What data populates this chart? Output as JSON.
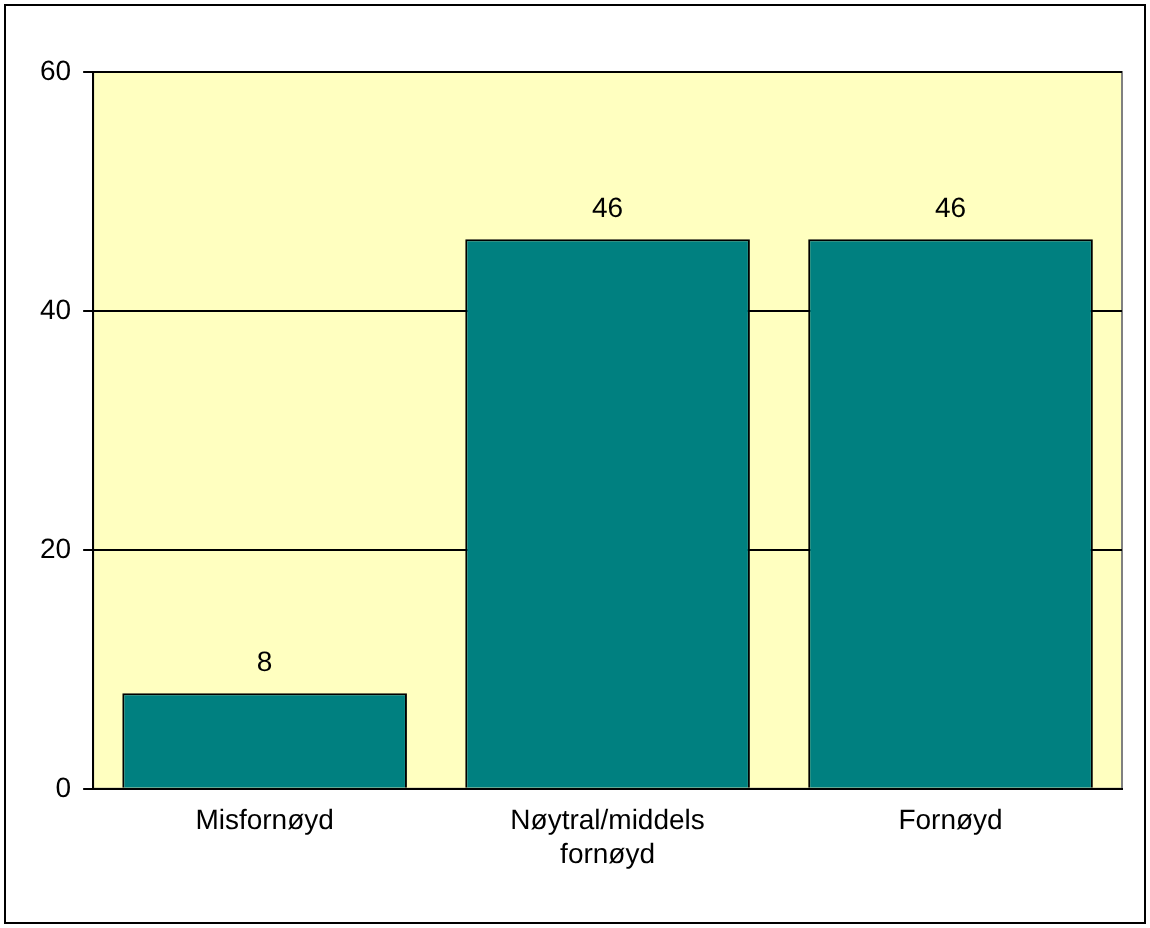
{
  "chart_data": {
    "type": "bar",
    "categories": [
      "Misfornøyd",
      "Nøytral/middels fornøyd",
      "Fornøyd"
    ],
    "values": [
      8,
      46,
      46
    ],
    "color": "#008080",
    "ylim": [
      0,
      60
    ],
    "yticks": [
      0,
      20,
      40,
      60
    ],
    "grid": "y",
    "data_labels": true,
    "legend": false
  }
}
